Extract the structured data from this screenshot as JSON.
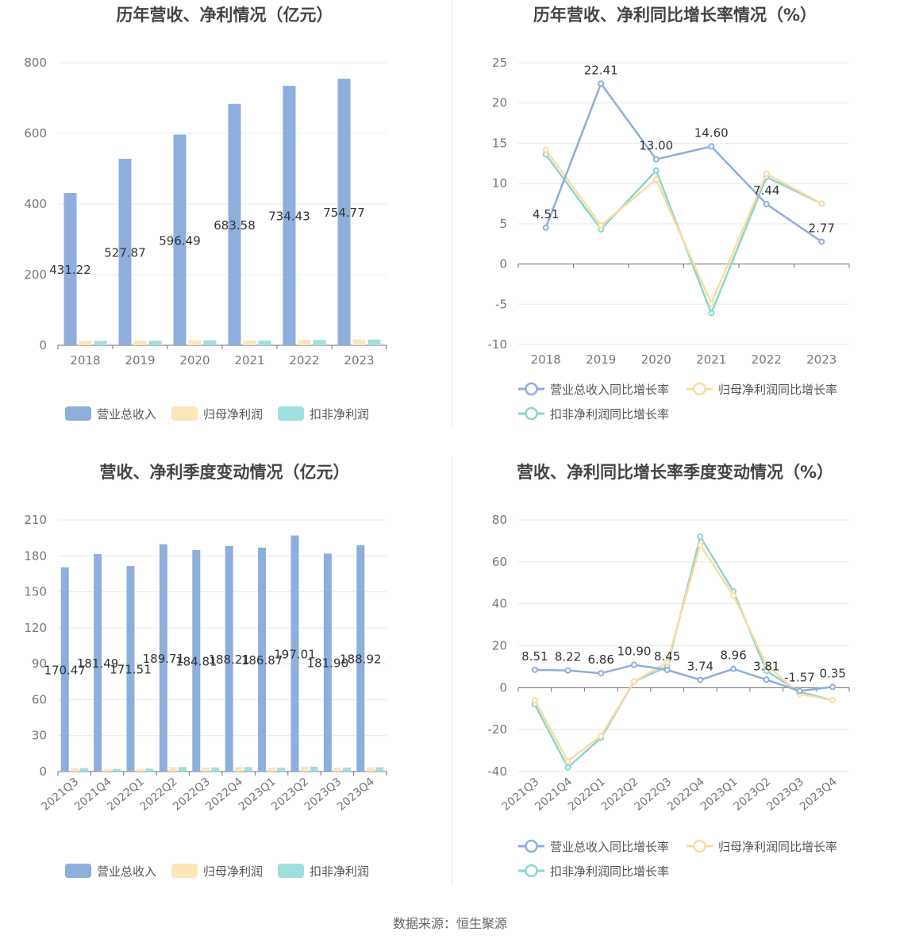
{
  "footer": {
    "source": "数据来源：恒生聚源"
  },
  "colors": {
    "revenue": "#8eaedc",
    "parent": "#fde5ba",
    "nonrec": "#9fe0dd",
    "revenue_line": "#8eaedc",
    "parent_line": "#fddba0",
    "nonrec_line": "#8ad6d0"
  },
  "chart_data": [
    {
      "type": "bar",
      "title": "历年营收、净利情况（亿元）",
      "categories": [
        "2018",
        "2019",
        "2020",
        "2021",
        "2022",
        "2023"
      ],
      "ylim": [
        0,
        800
      ],
      "yticks": [
        0,
        200,
        400,
        600,
        800
      ],
      "grid": true,
      "legend_position": "bottom",
      "series": [
        {
          "name": "营业总收入",
          "values": [
            431.22,
            527.87,
            596.49,
            683.58,
            734.43,
            754.77
          ],
          "labels": [
            "431.22",
            "527.87",
            "596.49",
            "683.58",
            "734.43",
            "754.77"
          ]
        },
        {
          "name": "归母净利润",
          "values": [
            12.5,
            13.2,
            14.3,
            13.6,
            15.2,
            16.3
          ]
        },
        {
          "name": "扣非净利润",
          "values": [
            12.3,
            13.0,
            14.1,
            13.5,
            15.0,
            16.1
          ]
        }
      ]
    },
    {
      "type": "line",
      "title": "历年营收、净利同比增长率情况（%）",
      "categories": [
        "2018",
        "2019",
        "2020",
        "2021",
        "2022",
        "2023"
      ],
      "ylim": [
        -10,
        25
      ],
      "yticks": [
        -10,
        -5,
        0,
        5,
        10,
        15,
        20,
        25
      ],
      "grid": true,
      "legend_position": "bottom",
      "series": [
        {
          "name": "营业总收入同比增长率",
          "values": [
            4.51,
            22.41,
            13.0,
            14.6,
            7.44,
            2.77
          ],
          "labels": [
            "4.51",
            "22.41",
            "13.00",
            "14.60",
            "7.44",
            "2.77"
          ]
        },
        {
          "name": "归母净利润同比增长率",
          "values": [
            14.2,
            4.8,
            10.5,
            -4.9,
            11.2,
            7.5
          ]
        },
        {
          "name": "扣非净利润同比增长率",
          "values": [
            13.6,
            4.3,
            11.6,
            -6.1,
            10.8,
            7.5
          ]
        }
      ]
    },
    {
      "type": "bar",
      "title": "营收、净利季度变动情况（亿元）",
      "categories": [
        "2021Q3",
        "2021Q4",
        "2022Q1",
        "2022Q2",
        "2022Q3",
        "2022Q4",
        "2023Q1",
        "2023Q2",
        "2023Q3",
        "2023Q4"
      ],
      "ylim": [
        0,
        210
      ],
      "yticks": [
        0,
        30,
        60,
        90,
        120,
        150,
        180,
        210
      ],
      "grid": true,
      "legend_position": "bottom",
      "series": [
        {
          "name": "营业总收入",
          "values": [
            170.47,
            181.49,
            171.51,
            189.71,
            184.81,
            188.21,
            186.87,
            197.01,
            181.9,
            188.92
          ],
          "labels": [
            "170.47",
            "181.49",
            "171.51",
            "189.71",
            "184.81",
            "188.21",
            "186.87",
            "197.01",
            "181.90",
            "188.92"
          ]
        },
        {
          "name": "归母净利润",
          "values": [
            3.0,
            2.3,
            2.4,
            3.8,
            3.4,
            3.8,
            3.2,
            4.1,
            3.3,
            3.6
          ]
        },
        {
          "name": "扣非净利润",
          "values": [
            3.0,
            2.3,
            2.4,
            3.8,
            3.4,
            3.8,
            3.2,
            4.1,
            3.3,
            3.6
          ]
        }
      ]
    },
    {
      "type": "line",
      "title": "营收、净利同比增长率季度变动情况（%）",
      "categories": [
        "2021Q3",
        "2021Q4",
        "2022Q1",
        "2022Q2",
        "2022Q3",
        "2022Q4",
        "2023Q1",
        "2023Q2",
        "2023Q3",
        "2023Q4"
      ],
      "ylim": [
        -40,
        80
      ],
      "yticks": [
        -40,
        -20,
        0,
        20,
        40,
        60,
        80
      ],
      "grid": true,
      "legend_position": "bottom",
      "series": [
        {
          "name": "营业总收入同比增长率",
          "values": [
            8.51,
            8.22,
            6.86,
            10.9,
            8.45,
            3.74,
            8.96,
            3.81,
            -1.57,
            0.35
          ],
          "labels": [
            "8.51",
            "8.22",
            "6.86",
            "10.90",
            "8.45",
            "3.74",
            "8.96",
            "3.81",
            "-1.57",
            "0.35"
          ]
        },
        {
          "name": "归母净利润同比增长率",
          "values": [
            -6,
            -35,
            -23,
            3,
            12,
            68,
            44,
            11,
            -3,
            -6
          ]
        },
        {
          "name": "扣非净利润同比增长率",
          "values": [
            -8,
            -38,
            -24,
            3,
            10,
            72,
            46,
            8,
            -2,
            -6
          ]
        }
      ]
    }
  ]
}
